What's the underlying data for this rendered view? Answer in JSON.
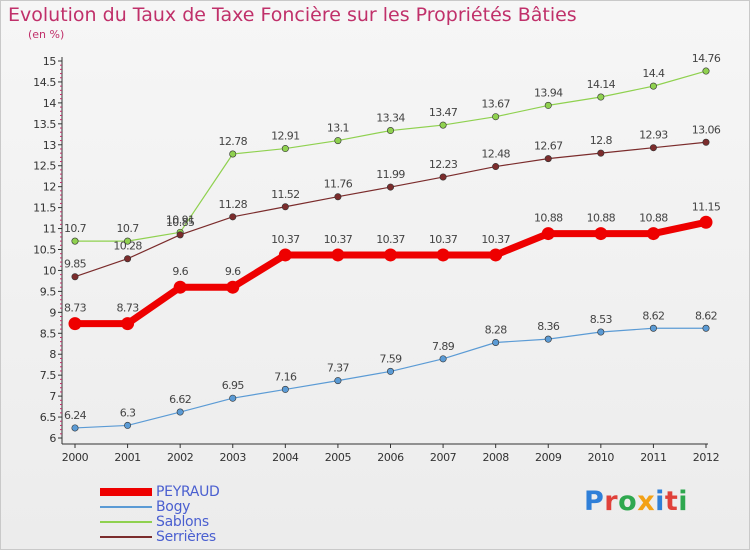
{
  "title": "Evolution du Taux de Taxe Foncière sur les Propriétés Bâties",
  "subtitle": "(en %)",
  "logo": {
    "text": "Proxiti",
    "letters": [
      {
        "ch": "P",
        "color": "#2f7fd8"
      },
      {
        "ch": "r",
        "color": "#e0413a"
      },
      {
        "ch": "o",
        "color": "#2fa84f"
      },
      {
        "ch": "x",
        "color": "#f2a116"
      },
      {
        "ch": "i",
        "color": "#2f7fd8"
      },
      {
        "ch": "t",
        "color": "#e0413a"
      },
      {
        "ch": "i",
        "color": "#2fa84f"
      }
    ]
  },
  "chart_data": {
    "type": "line",
    "title": "Evolution du Taux de Taxe Foncière sur les Propriétés Bâties",
    "ylabel": "(en %)",
    "xlabel": "",
    "x": [
      "2000",
      "2001",
      "2002",
      "2003",
      "2004",
      "2005",
      "2006",
      "2007",
      "2008",
      "2009",
      "2010",
      "2011",
      "2012"
    ],
    "ylim": [
      6,
      15
    ],
    "yticks": [
      "6",
      "6.5",
      "7",
      "7.5",
      "8",
      "8.5",
      "9",
      "9.5",
      "10",
      "10.5",
      "11",
      "11.5",
      "12",
      "12.5",
      "13",
      "13.5",
      "14",
      "14.5",
      "15"
    ],
    "grid": "off",
    "legend_position": "bottom-left",
    "series": [
      {
        "name": "PEYRAUD",
        "color": "#ee0000",
        "style": "step",
        "emphasis": true,
        "values": [
          8.73,
          8.73,
          9.6,
          9.6,
          10.37,
          10.37,
          10.37,
          10.37,
          10.37,
          10.88,
          10.88,
          10.88,
          11.15
        ],
        "labels": [
          "8.73",
          "8.73",
          "9.6",
          "9.6",
          "10.37",
          "10.37",
          "10.37",
          "10.37",
          "10.37",
          "10.88",
          "10.88",
          "10.88",
          "11.15"
        ]
      },
      {
        "name": "Bogy",
        "color": "#5b9bd5",
        "style": "line",
        "values": [
          6.24,
          6.3,
          6.62,
          6.95,
          7.16,
          7.37,
          7.59,
          7.89,
          8.28,
          8.36,
          8.53,
          8.62,
          8.62
        ],
        "labels": [
          "6.24",
          "6.3",
          "6.62",
          "6.95",
          "7.16",
          "7.37",
          "7.59",
          "7.89",
          "8.28",
          "8.36",
          "8.53",
          "8.62",
          "8.62"
        ]
      },
      {
        "name": "Sablons",
        "color": "#8fd14f",
        "style": "line",
        "values": [
          10.7,
          10.7,
          10.91,
          12.78,
          12.91,
          13.1,
          13.34,
          13.47,
          13.67,
          13.94,
          14.14,
          14.4,
          14.76
        ],
        "labels": [
          "10.7",
          "10.7",
          "10.91",
          "12.78",
          "12.91",
          "13.1",
          "13.34",
          "13.47",
          "13.67",
          "13.94",
          "14.14",
          "14.4",
          "14.76"
        ]
      },
      {
        "name": "Serrières",
        "color": "#7b2c2c",
        "style": "line",
        "values": [
          9.85,
          10.28,
          10.85,
          11.28,
          11.52,
          11.76,
          11.99,
          12.23,
          12.48,
          12.67,
          12.8,
          12.93,
          13.06
        ],
        "labels": [
          "9.85",
          "10.28",
          "10.85",
          "11.28",
          "11.52",
          "11.76",
          "11.99",
          "12.23",
          "12.48",
          "12.67",
          "12.8",
          "12.93",
          "13.06"
        ]
      }
    ]
  }
}
